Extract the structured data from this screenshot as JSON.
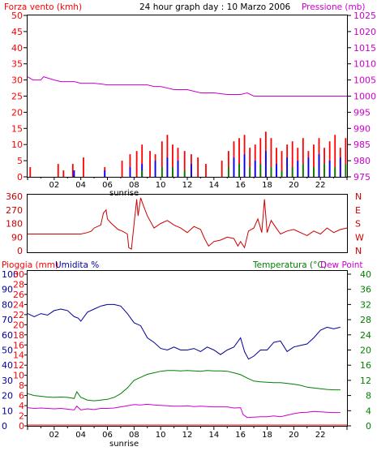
{
  "header": {
    "wind_title": "Forza vento (kmh)",
    "graph_title": "24 hour graph day : 10 Marzo 2006",
    "pressure_title": "Pressione (mb)"
  },
  "footer": {
    "rain_title": "Pioggia (mm)",
    "humidity_title": "Umidita %",
    "temperature_title": "Temperatura (°C)",
    "dewpoint_title": "Dew Point"
  },
  "sunrise_label": "sunrise",
  "hour_labels": [
    "02",
    "04",
    "06",
    "08",
    "10",
    "12",
    "14",
    "16",
    "18",
    "20",
    "22"
  ],
  "colors": {
    "wind_gust": "#ff0000",
    "wind_avg": "#0000ff",
    "wind_min": "#008000",
    "pressure": "#cc00cc",
    "direction": "#cc0000",
    "humidity": "#000099",
    "temperature": "#008000",
    "dewpoint": "#cc00cc",
    "rain": "#ff0000"
  },
  "chart_data": [
    {
      "type": "bar",
      "name": "wind_pressure",
      "x_range": [
        0,
        24
      ],
      "left_axis": {
        "label": "Forza vento (kmh)",
        "ylim": [
          0,
          50
        ],
        "ticks": [
          0,
          5,
          10,
          15,
          20,
          25,
          30,
          35,
          40,
          45,
          50
        ]
      },
      "right_axis": {
        "label": "Pressione (mb)",
        "ylim": [
          975,
          1025
        ],
        "ticks": [
          975,
          980,
          985,
          990,
          995,
          1000,
          1005,
          1010,
          1015,
          1020,
          1025
        ]
      },
      "pressure": {
        "x": [
          0,
          0.4,
          1,
          1.2,
          2,
          2.5,
          3.5,
          4,
          5,
          6,
          7,
          8,
          9,
          9.5,
          10,
          11,
          12,
          12.5,
          13,
          14,
          15,
          16,
          16.5,
          17,
          17.5,
          18,
          19,
          20,
          21,
          22,
          23,
          24
        ],
        "y": [
          1006,
          1005,
          1005,
          1006,
          1005,
          1004.5,
          1004.5,
          1004,
          1004,
          1003.5,
          1003.5,
          1003.5,
          1003.5,
          1003,
          1003,
          1002,
          1002,
          1001.5,
          1001,
          1001,
          1000.5,
          1000.5,
          1001,
          1000,
          1000,
          1000,
          1000,
          1000,
          1000,
          1000,
          1000,
          1000
        ]
      },
      "wind_gust": {
        "x": [
          0.2,
          2.3,
          2.7,
          3.4,
          4.2,
          5.8,
          7.1,
          7.7,
          8.2,
          8.6,
          9.2,
          9.6,
          10.1,
          10.5,
          10.9,
          11.3,
          11.8,
          12.3,
          12.8,
          13.4,
          14.6,
          15.1,
          15.5,
          15.9,
          16.3,
          16.7,
          17.1,
          17.5,
          17.9,
          18.3,
          18.7,
          19.1,
          19.5,
          19.9,
          20.3,
          20.7,
          21.1,
          21.5,
          21.9,
          22.3,
          22.7,
          23.1,
          23.5,
          23.9
        ],
        "values": [
          3,
          4,
          2,
          4,
          6,
          3,
          5,
          7,
          8,
          10,
          8,
          7,
          11,
          13,
          10,
          9,
          8,
          7,
          6,
          4,
          5,
          8,
          11,
          12,
          13,
          9,
          10,
          12,
          14,
          12,
          9,
          8,
          10,
          11,
          9,
          12,
          8,
          10,
          12,
          9,
          11,
          13,
          9,
          12
        ]
      },
      "wind_avg": {
        "x": [
          3.5,
          5.8,
          7.7,
          8.6,
          9.6,
          10.5,
          11.3,
          12.3,
          15.5,
          16.3,
          17.1,
          17.9,
          18.7,
          19.5,
          20.3,
          21.1,
          21.9,
          22.7,
          23.5
        ],
        "values": [
          2,
          2,
          3,
          4,
          5,
          6,
          5,
          4,
          6,
          7,
          5,
          8,
          4,
          6,
          5,
          6,
          7,
          5,
          6
        ]
      },
      "wind_min": {
        "x": [
          8.6,
          10.1,
          10.9,
          11.8,
          15.1,
          15.9,
          16.7,
          17.5,
          18.3,
          19.1,
          19.9,
          20.7,
          21.5,
          22.3,
          23.1,
          23.9
        ],
        "values": [
          2,
          3,
          3,
          2,
          3,
          4,
          3,
          4,
          3,
          2,
          3,
          4,
          3,
          4,
          3,
          4
        ]
      }
    },
    {
      "type": "line",
      "name": "wind_direction",
      "x_range": [
        0,
        24
      ],
      "left_axis": {
        "ylim": [
          0,
          360
        ],
        "ticks": [
          0,
          90,
          180,
          270,
          360
        ]
      },
      "right_axis": {
        "ticks": [
          "N",
          "W",
          "S",
          "E",
          "N"
        ]
      },
      "direction": {
        "x": [
          0,
          1,
          2,
          3,
          4,
          4.5,
          4.8,
          5,
          5.5,
          5.7,
          5.9,
          6,
          6.3,
          6.8,
          7.1,
          7.5,
          7.6,
          7.8,
          8.2,
          8.3,
          8.5,
          8.7,
          9,
          9.5,
          10,
          10.5,
          11,
          11.5,
          12,
          12.5,
          13,
          13.3,
          13.6,
          14,
          14.5,
          15,
          15.5,
          15.8,
          16,
          16.3,
          16.6,
          17,
          17.3,
          17.6,
          17.8,
          18,
          18.3,
          18.6,
          19,
          19.5,
          20,
          20.5,
          21,
          21.5,
          22,
          22.5,
          23,
          23.5,
          24
        ],
        "y": [
          110,
          110,
          110,
          110,
          110,
          120,
          130,
          150,
          170,
          250,
          270,
          210,
          180,
          140,
          130,
          110,
          20,
          10,
          340,
          230,
          350,
          300,
          230,
          150,
          180,
          200,
          170,
          150,
          120,
          160,
          140,
          80,
          30,
          60,
          70,
          90,
          80,
          30,
          60,
          20,
          130,
          150,
          210,
          120,
          340,
          120,
          200,
          160,
          110,
          130,
          140,
          120,
          100,
          130,
          110,
          150,
          120,
          140,
          150
        ]
      }
    },
    {
      "type": "line",
      "name": "rain_humidity_temperature",
      "x_range": [
        0,
        24
      ],
      "axes_left": [
        {
          "label": "Pioggia (mm)",
          "ylim": [
            0,
            30
          ],
          "ticks": [
            0,
            2,
            4,
            6,
            8,
            10,
            12,
            14,
            16,
            18,
            20,
            22,
            24,
            26,
            28,
            30
          ]
        },
        {
          "label": "Umidita %",
          "ylim": [
            0,
            100
          ],
          "ticks": [
            0,
            10,
            20,
            30,
            40,
            50,
            60,
            70,
            80,
            90,
            100
          ]
        }
      ],
      "axis_right": {
        "label": "Temperatura (°C)",
        "ylim": [
          0,
          40
        ],
        "ticks": [
          0,
          4,
          8,
          12,
          16,
          20,
          24,
          28,
          32,
          36,
          40
        ]
      },
      "rain": {
        "x": [
          0,
          24
        ],
        "y": [
          0,
          0
        ]
      },
      "humidity": {
        "x": [
          0,
          0.5,
          1,
          1.5,
          2,
          2.5,
          3,
          3.5,
          3.8,
          4,
          4.5,
          5,
          5.5,
          6,
          6.5,
          7,
          7.5,
          8,
          8.5,
          9,
          9.5,
          10,
          10.5,
          11,
          11.5,
          12,
          12.5,
          13,
          13.5,
          14,
          14.5,
          15,
          15.5,
          16,
          16.3,
          16.6,
          17,
          17.5,
          18,
          18.5,
          19,
          19.5,
          20,
          20.5,
          21,
          21.5,
          22,
          22.5,
          23,
          23.5
        ],
        "y": [
          74,
          72,
          74,
          73,
          76,
          77,
          76,
          72,
          71,
          69,
          75,
          77,
          79,
          80,
          80,
          79,
          74,
          68,
          66,
          58,
          55,
          51,
          50,
          52,
          50,
          50,
          51,
          49,
          52,
          50,
          47,
          50,
          52,
          58,
          49,
          44,
          46,
          50,
          50,
          55,
          56,
          49,
          52,
          53,
          54,
          58,
          63,
          65,
          64,
          65
        ]
      },
      "temperature": {
        "x": [
          0,
          0.5,
          1,
          1.5,
          2,
          2.5,
          3,
          3.5,
          3.7,
          4,
          4.5,
          5,
          5.5,
          6,
          6.5,
          7,
          7.5,
          8,
          8.5,
          9,
          9.5,
          10,
          10.5,
          11,
          11.5,
          12,
          12.5,
          13,
          13.5,
          14,
          14.5,
          15,
          15.5,
          16,
          16.5,
          17,
          17.5,
          18,
          18.5,
          19,
          19.5,
          20,
          20.5,
          21,
          21.5,
          22,
          22.5,
          23,
          23.5
        ],
        "y": [
          8.5,
          8,
          7.8,
          7.6,
          7.5,
          7.6,
          7.5,
          7.2,
          9,
          7.5,
          6.8,
          6.6,
          6.8,
          7,
          7.5,
          8.5,
          10,
          12,
          12.8,
          13.6,
          14,
          14.4,
          14.6,
          14.6,
          14.5,
          14.6,
          14.5,
          14.4,
          14.6,
          14.5,
          14.5,
          14.4,
          14,
          13.5,
          12.6,
          11.8,
          11.6,
          11.5,
          11.4,
          11.4,
          11.2,
          11,
          10.7,
          10.2,
          10,
          9.8,
          9.6,
          9.5,
          9.5
        ]
      },
      "dewpoint": {
        "x": [
          0,
          0.5,
          1,
          1.5,
          2,
          2.5,
          3,
          3.5,
          3.7,
          4,
          4.5,
          5,
          5.5,
          6,
          6.5,
          7,
          7.5,
          8,
          8.5,
          9,
          9.5,
          10,
          10.5,
          11,
          11.5,
          12,
          12.5,
          13,
          13.5,
          14,
          14.5,
          15,
          15.5,
          16,
          16.2,
          16.5,
          17,
          17.5,
          18,
          18.5,
          19,
          19.5,
          20,
          20.5,
          21,
          21.5,
          22,
          22.5,
          23,
          23.5
        ],
        "y": [
          4.8,
          4.6,
          4.7,
          4.6,
          4.5,
          4.6,
          4.4,
          4.2,
          5.2,
          4.2,
          4.5,
          4.3,
          4.6,
          4.6,
          4.7,
          5,
          5.3,
          5.6,
          5.5,
          5.7,
          5.5,
          5.4,
          5.3,
          5.2,
          5.2,
          5.3,
          5.1,
          5.2,
          5.1,
          5,
          5,
          5,
          4.7,
          4.8,
          3,
          2.2,
          2.3,
          2.4,
          2.4,
          2.6,
          2.4,
          2.8,
          3.2,
          3.5,
          3.6,
          3.8,
          3.7,
          3.6,
          3.5,
          3.5
        ]
      }
    }
  ]
}
